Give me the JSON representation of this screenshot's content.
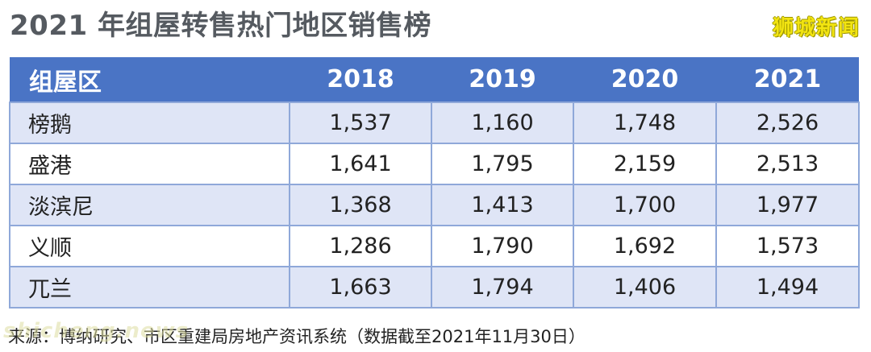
{
  "title": "2021 年组屋转售热门地区销售榜",
  "watermark_top": "狮城新闻",
  "table": {
    "headers": [
      "组屋区",
      "2018",
      "2019",
      "2020",
      "2021"
    ],
    "rows": [
      {
        "area": "榜鹅",
        "v2018": "1,537",
        "v2019": "1,160",
        "v2020": "1,748",
        "v2021": "2,526"
      },
      {
        "area": "盛港",
        "v2018": "1,641",
        "v2019": "1,795",
        "v2020": "2,159",
        "v2021": "2,513"
      },
      {
        "area": "淡滨尼",
        "v2018": "1,368",
        "v2019": "1,413",
        "v2020": "1,700",
        "v2021": "1,977"
      },
      {
        "area": "义顺",
        "v2018": "1,286",
        "v2019": "1,790",
        "v2020": "1,692",
        "v2021": "1,573"
      },
      {
        "area": "兀兰",
        "v2018": "1,663",
        "v2019": "1,794",
        "v2020": "1,406",
        "v2021": "1,494"
      }
    ]
  },
  "source": "来源：博纳研究、市区重建局房地产资讯系统（数据截至2021年11月30日）",
  "watermark_bottom": "shicheng.news"
}
